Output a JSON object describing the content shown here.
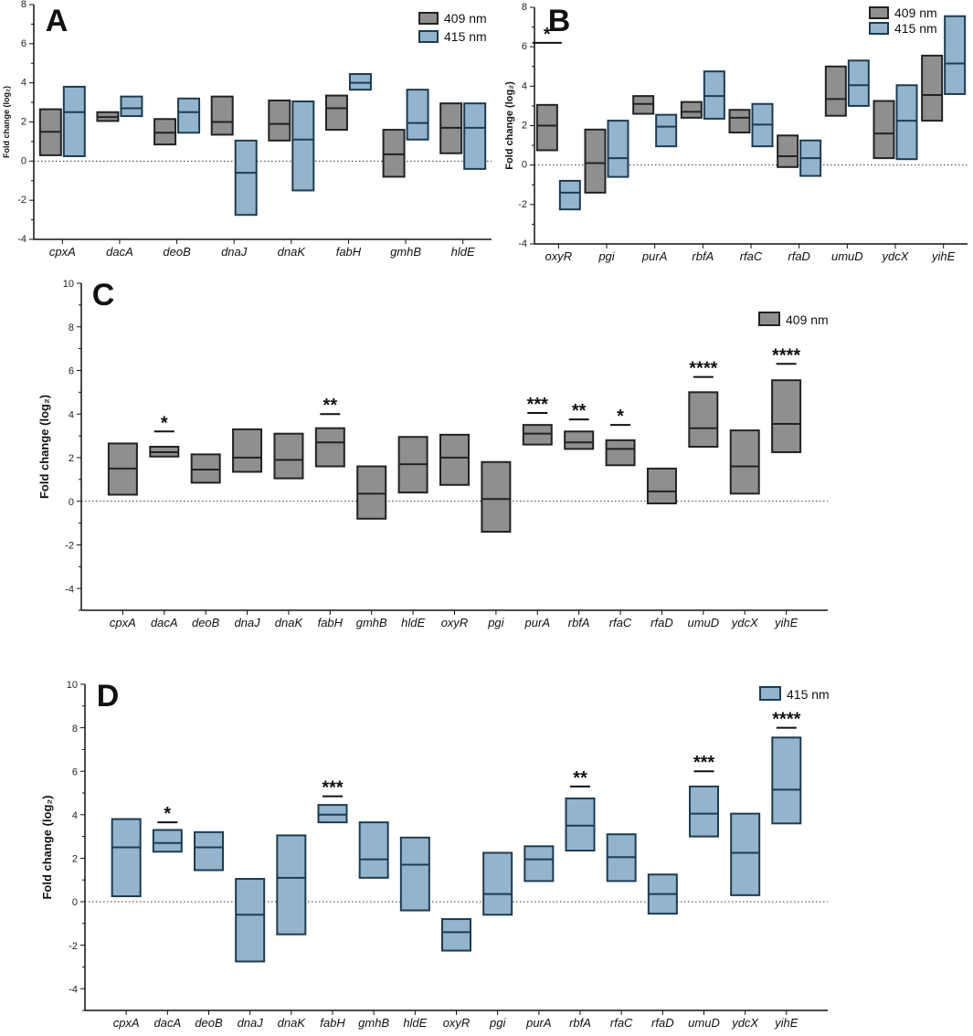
{
  "colors": {
    "g409_fill": "#8f8f8f",
    "g409_stroke": "#222222",
    "b415_fill": "#93b4cc",
    "b415_stroke": "#1d3c4f"
  },
  "chart_data": [
    {
      "panel": "A",
      "type": "box-range",
      "ylabel": "Fold change (log₂)",
      "ylim": [
        -4,
        8
      ],
      "yticks": [
        "-4",
        "-2",
        "0",
        "2",
        "4",
        "6",
        "8"
      ],
      "legend": [
        "409 nm",
        "415 nm"
      ],
      "categories": [
        "cpxA",
        "dacA",
        "deoB",
        "dnaJ",
        "dnaK",
        "fabH",
        "gmhB",
        "hldE"
      ],
      "series": [
        {
          "name": "409 nm",
          "color": "#8f8f8f",
          "min": [
            0.3,
            2.05,
            0.85,
            1.35,
            1.05,
            1.6,
            -0.8,
            0.4
          ],
          "median": [
            1.5,
            2.25,
            1.45,
            2.0,
            1.9,
            2.7,
            0.35,
            1.7
          ],
          "max": [
            2.65,
            2.5,
            2.15,
            3.3,
            3.1,
            3.35,
            1.6,
            2.95
          ]
        },
        {
          "name": "415 nm",
          "color": "#93b4cc",
          "min": [
            0.25,
            2.3,
            1.45,
            -2.75,
            -1.5,
            3.65,
            1.1,
            -0.4
          ],
          "median": [
            2.5,
            2.7,
            2.5,
            -0.6,
            1.1,
            4.0,
            1.95,
            1.7
          ],
          "max": [
            3.8,
            3.3,
            3.2,
            1.05,
            3.05,
            4.45,
            3.65,
            2.95
          ]
        }
      ],
      "significance": []
    },
    {
      "panel": "B",
      "type": "box-range",
      "ylabel": "Fold change (log₂)",
      "ylim": [
        -4,
        8
      ],
      "yticks": [
        "-4",
        "-2",
        "0",
        "2",
        "4",
        "6",
        "8"
      ],
      "legend": [
        "409 nm",
        "415 nm"
      ],
      "categories": [
        "oxyR",
        "pgi",
        "purA",
        "rbfA",
        "rfaC",
        "rfaD",
        "umuD",
        "ydcX",
        "yihE"
      ],
      "series": [
        {
          "name": "409 nm",
          "color": "#8f8f8f",
          "min": [
            0.75,
            -1.4,
            2.6,
            2.4,
            1.65,
            -0.1,
            2.5,
            0.35,
            2.25
          ],
          "median": [
            2.0,
            0.1,
            3.1,
            2.7,
            2.4,
            0.45,
            3.35,
            1.6,
            3.55
          ],
          "max": [
            3.05,
            1.8,
            3.5,
            3.2,
            2.8,
            1.5,
            5.0,
            3.25,
            5.55
          ]
        },
        {
          "name": "415 nm",
          "color": "#93b4cc",
          "min": [
            -2.25,
            -0.6,
            0.95,
            2.35,
            0.95,
            -0.55,
            3.0,
            0.3,
            3.6
          ],
          "median": [
            -1.4,
            0.35,
            1.95,
            3.5,
            2.05,
            0.35,
            4.05,
            2.25,
            5.15
          ],
          "max": [
            -0.8,
            2.25,
            2.55,
            4.75,
            3.1,
            1.25,
            5.3,
            4.05,
            7.55
          ]
        }
      ],
      "significance": [
        {
          "category": "oxyR",
          "label": "*",
          "value": 6.2
        }
      ]
    },
    {
      "panel": "C",
      "type": "box-range",
      "ylabel": "Fold change (log₂)",
      "ylim": [
        -5,
        10
      ],
      "yticks": [
        "-4",
        "-2",
        "0",
        "2",
        "4",
        "6",
        "8",
        "10"
      ],
      "legend": [
        "409 nm"
      ],
      "categories": [
        "cpxA",
        "dacA",
        "deoB",
        "dnaJ",
        "dnaK",
        "fabH",
        "gmhB",
        "hldE",
        "oxyR",
        "pgi",
        "purA",
        "rbfA",
        "rfaC",
        "rfaD",
        "umuD",
        "ydcX",
        "yihE"
      ],
      "series": [
        {
          "name": "409 nm",
          "color": "#8f8f8f",
          "min": [
            0.3,
            2.05,
            0.85,
            1.35,
            1.05,
            1.6,
            -0.8,
            0.4,
            0.75,
            -1.4,
            2.6,
            2.4,
            1.65,
            -0.1,
            2.5,
            0.35,
            2.25
          ],
          "median": [
            1.5,
            2.25,
            1.45,
            2.0,
            1.9,
            2.7,
            0.35,
            1.7,
            2.0,
            0.1,
            3.1,
            2.7,
            2.4,
            0.45,
            3.35,
            1.6,
            3.55
          ],
          "max": [
            2.65,
            2.5,
            2.15,
            3.3,
            3.1,
            3.35,
            1.6,
            2.95,
            3.05,
            1.8,
            3.5,
            3.2,
            2.8,
            1.5,
            5.0,
            3.25,
            5.55
          ]
        }
      ],
      "significance": [
        {
          "category": "dacA",
          "label": "*",
          "value": 3.2
        },
        {
          "category": "fabH",
          "label": "**",
          "value": 4.0
        },
        {
          "category": "purA",
          "label": "***",
          "value": 4.05
        },
        {
          "category": "rbfA",
          "label": "**",
          "value": 3.75
        },
        {
          "category": "rfaC",
          "label": "*",
          "value": 3.5
        },
        {
          "category": "umuD",
          "label": "****",
          "value": 5.7
        },
        {
          "category": "yihE",
          "label": "****",
          "value": 6.3
        }
      ]
    },
    {
      "panel": "D",
      "type": "box-range",
      "ylabel": "Fold change (log₂)",
      "ylim": [
        -5,
        10
      ],
      "yticks": [
        "-4",
        "-2",
        "0",
        "2",
        "4",
        "6",
        "8",
        "10"
      ],
      "legend": [
        "415 nm"
      ],
      "categories": [
        "cpxA",
        "dacA",
        "deoB",
        "dnaJ",
        "dnaK",
        "fabH",
        "gmhB",
        "hldE",
        "oxyR",
        "pgi",
        "purA",
        "rbfA",
        "rfaC",
        "rfaD",
        "umuD",
        "ydcX",
        "yihE"
      ],
      "series": [
        {
          "name": "415 nm",
          "color": "#93b4cc",
          "min": [
            0.25,
            2.3,
            1.45,
            -2.75,
            -1.5,
            3.65,
            1.1,
            -0.4,
            -2.25,
            -0.6,
            0.95,
            2.35,
            0.95,
            -0.55,
            3.0,
            0.3,
            3.6
          ],
          "median": [
            2.5,
            2.7,
            2.5,
            -0.6,
            1.1,
            4.0,
            1.95,
            1.7,
            -1.4,
            0.35,
            1.95,
            3.5,
            2.05,
            0.35,
            4.05,
            2.25,
            5.15
          ],
          "max": [
            3.8,
            3.3,
            3.2,
            1.05,
            3.05,
            4.45,
            3.65,
            2.95,
            -0.8,
            2.25,
            2.55,
            4.75,
            3.1,
            1.25,
            5.3,
            4.05,
            7.55
          ]
        }
      ],
      "significance": [
        {
          "category": "dacA",
          "label": "*",
          "value": 3.65
        },
        {
          "category": "fabH",
          "label": "***",
          "value": 4.85
        },
        {
          "category": "rbfA",
          "label": "**",
          "value": 5.3
        },
        {
          "category": "umuD",
          "label": "***",
          "value": 6.0
        },
        {
          "category": "yihE",
          "label": "****",
          "value": 8.0
        }
      ]
    }
  ]
}
